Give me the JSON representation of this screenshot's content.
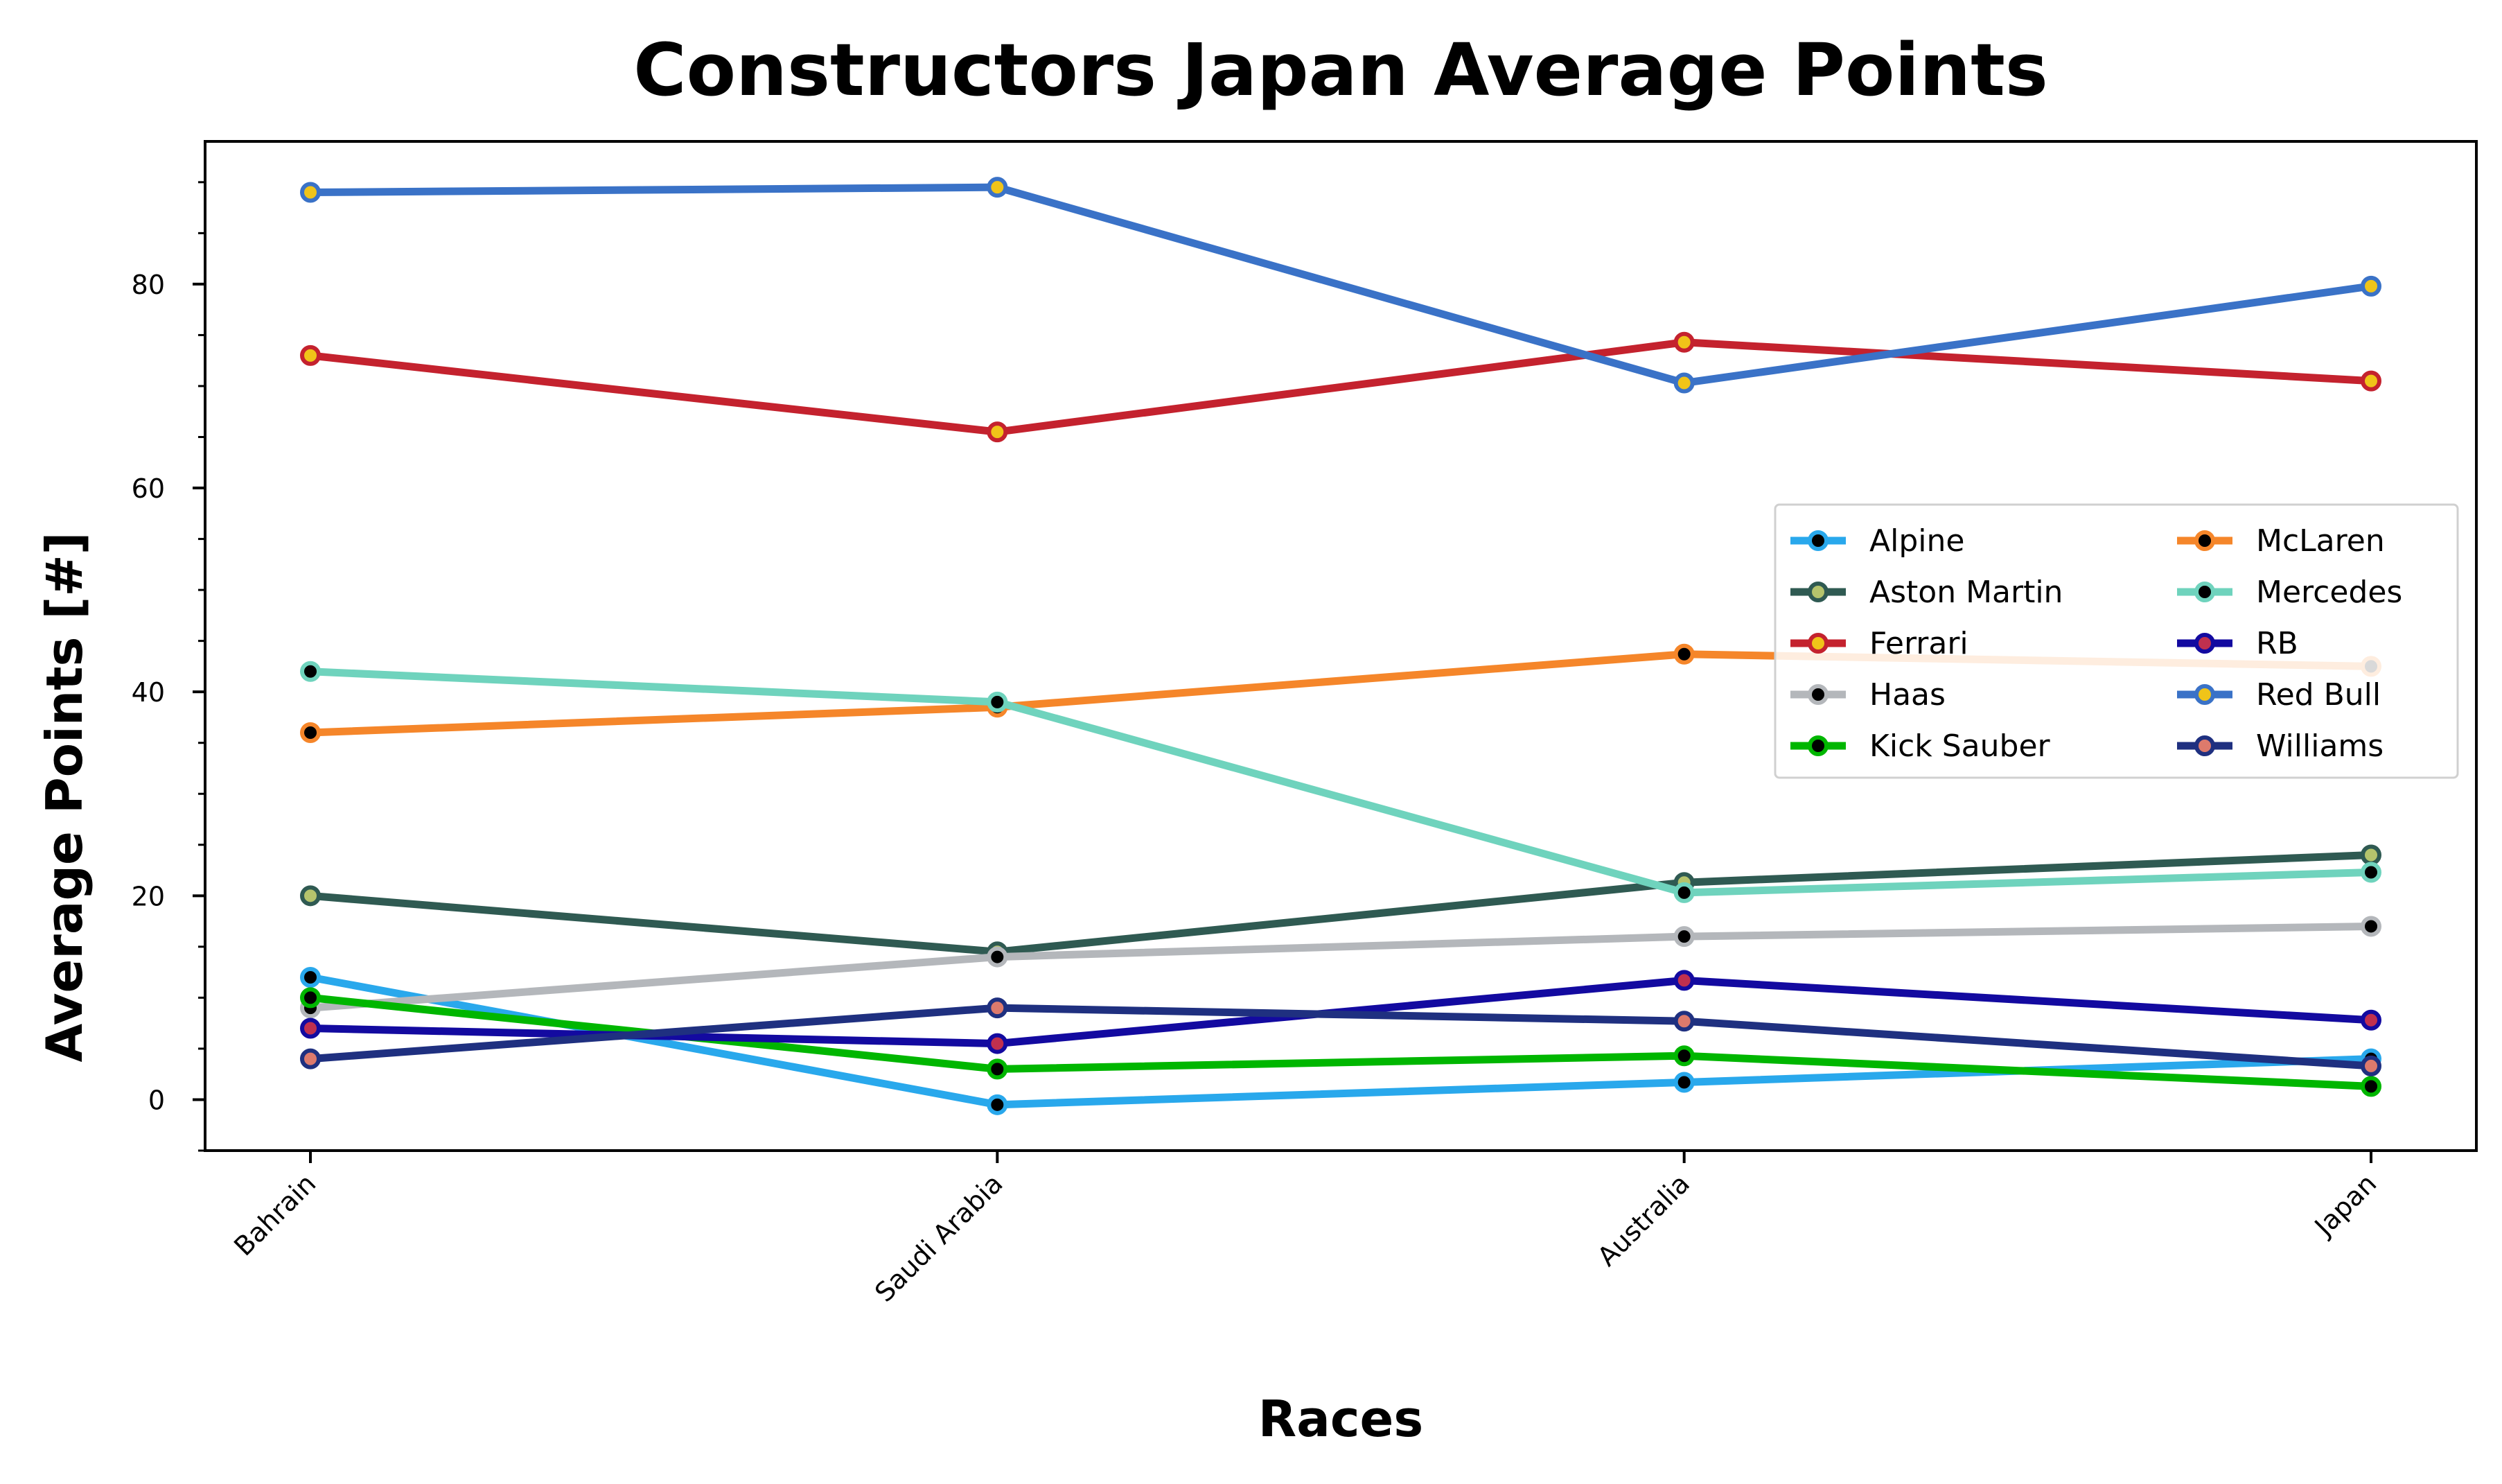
{
  "chart_data": {
    "type": "line",
    "title": "Constructors Japan Average Points",
    "xlabel": "Races",
    "ylabel": "Average Points [#]",
    "categories": [
      "Bahrain",
      "Saudi Arabia",
      "Australia",
      "Japan"
    ],
    "ylim": [
      -5,
      94
    ],
    "yticks": [
      0,
      20,
      40,
      60,
      80
    ],
    "yminor_step": 5,
    "grid": false,
    "legend": {
      "placement": "center-right",
      "columns": 2
    },
    "series": [
      {
        "name": "Alpine",
        "color": "#29a8ec",
        "marker_face": "#000000",
        "marker_edge": "#29a8ec",
        "values": [
          12,
          -0.5,
          1.7,
          4
        ]
      },
      {
        "name": "Aston Martin",
        "color": "#2f5a52",
        "marker_face": "#b5c46c",
        "marker_edge": "#2f5a52",
        "values": [
          20,
          14.5,
          21.3,
          24
        ]
      },
      {
        "name": "Ferrari",
        "color": "#c4222e",
        "marker_face": "#f0c419",
        "marker_edge": "#c4222e",
        "values": [
          73,
          65.5,
          74.3,
          70.5
        ]
      },
      {
        "name": "Haas",
        "color": "#b4b7bb",
        "marker_face": "#000000",
        "marker_edge": "#b4b7bb",
        "values": [
          9,
          14,
          16,
          17
        ]
      },
      {
        "name": "Kick Sauber",
        "color": "#00b600",
        "marker_face": "#000000",
        "marker_edge": "#00b600",
        "values": [
          10,
          3,
          4.3,
          1.3
        ]
      },
      {
        "name": "McLaren",
        "color": "#f5862a",
        "marker_face": "#000000",
        "marker_edge": "#f5862a",
        "values": [
          36,
          38.5,
          43.7,
          42.5
        ]
      },
      {
        "name": "Mercedes",
        "color": "#6fd3bd",
        "marker_face": "#000000",
        "marker_edge": "#6fd3bd",
        "values": [
          42,
          39,
          20.3,
          22.3
        ]
      },
      {
        "name": "RB",
        "color": "#130aa0",
        "marker_face": "#c0304f",
        "marker_edge": "#130aa0",
        "values": [
          7,
          5.5,
          11.7,
          7.8
        ]
      },
      {
        "name": "Red Bull",
        "color": "#3a72c7",
        "marker_face": "#f0c419",
        "marker_edge": "#3a72c7",
        "values": [
          89,
          89.5,
          70.3,
          79.8
        ]
      },
      {
        "name": "Williams",
        "color": "#1f3080",
        "marker_face": "#dd7a6c",
        "marker_edge": "#1f3080",
        "values": [
          4,
          9,
          7.7,
          3.3
        ]
      }
    ]
  }
}
